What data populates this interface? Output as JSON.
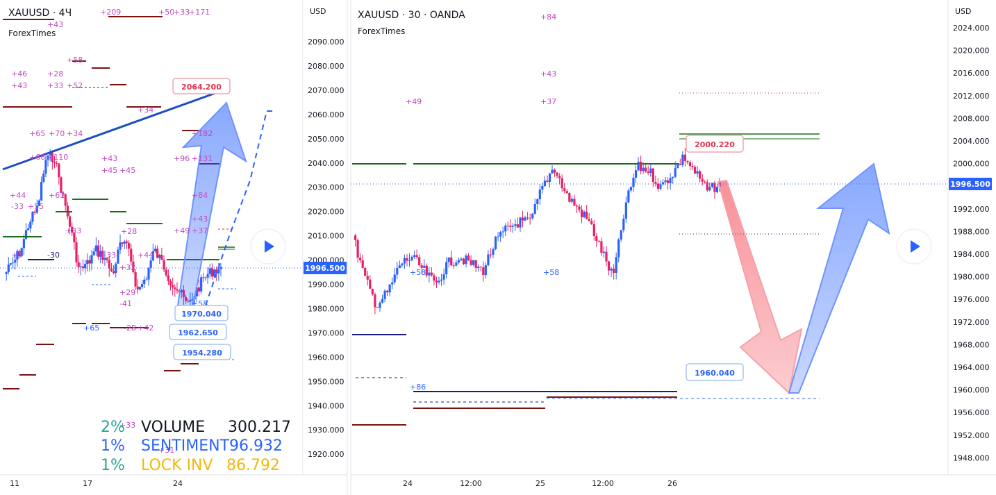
{
  "left_panel": {
    "symbol": "XAUUSD · 4Ч",
    "source": "ForexTimes",
    "currency": "USD",
    "y_ticks": [
      "2090.000",
      "2080.000",
      "2070.000",
      "2060.000",
      "2050.000",
      "2040.000",
      "2030.000",
      "2020.000",
      "2010.000",
      "2000.000",
      "1990.000",
      "1980.000",
      "1970.000",
      "1960.000",
      "1950.000",
      "1940.000",
      "1930.000",
      "1920.000"
    ],
    "x_ticks": [
      "11",
      "17",
      "24"
    ],
    "last_price": "1996.500",
    "callouts": {
      "top": "2064.200",
      "c1": "1970.040",
      "c2": "1962.650",
      "c3": "1954.280"
    },
    "stats": [
      {
        "pct": "2%",
        "label": "VOLUME",
        "value": "300.217",
        "pct_color": "#26a69a",
        "label_color": "#131722",
        "value_color": "#131722"
      },
      {
        "pct": "1%",
        "label": "SENTIMENT",
        "value": "96.932",
        "pct_color": "#2962ff",
        "label_color": "#2962ff",
        "value_color": "#2962ff"
      },
      {
        "pct": "1%",
        "label": "LOCK INV",
        "value": "86.792",
        "pct_color": "#26a69a",
        "label_color": "#f0b90b",
        "value_color": "#f0b90b"
      }
    ]
  },
  "right_panel": {
    "symbol": "XAUUSD · 30 · OANDA",
    "source": "ForexTimes",
    "currency": "USD",
    "y_ticks": [
      "2024.000",
      "2020.000",
      "2016.000",
      "2012.000",
      "2008.000",
      "2004.000",
      "2000.000",
      "1996.000",
      "1992.000",
      "1988.000",
      "1984.000",
      "1980.000",
      "1976.000",
      "1972.000",
      "1968.000",
      "1964.000",
      "1960.000",
      "1956.000",
      "1952.000",
      "1948.000"
    ],
    "x_ticks": [
      "24",
      "12:00",
      "25",
      "12:00",
      "26"
    ],
    "last_price": "1996.500",
    "callouts": {
      "top": "2000.220",
      "bottom": "1960.040"
    },
    "annotations": [
      "+84",
      "+43",
      "+37",
      "+49",
      "+58",
      "+58",
      "+86"
    ]
  },
  "colors": {
    "up": "#2962ff",
    "down": "#e91e63",
    "price_badge": "#2962ff",
    "callout_red": "#e0334d",
    "callout_blue": "#2962ff"
  },
  "chart_data": [
    {
      "type": "candlestick",
      "title": "XAUUSD · 4Ч",
      "ylabel": "USD",
      "ylim": [
        1915,
        2100
      ],
      "x_ticks": [
        "11",
        "17",
        "24"
      ],
      "last": 1996.5,
      "levels": {
        "resistance_line_end": 2064.2,
        "targets": [
          1970.04,
          1962.65,
          1954.28
        ]
      }
    },
    {
      "type": "candlestick",
      "title": "XAUUSD · 30 · OANDA",
      "ylabel": "USD",
      "ylim": [
        1946,
        2026
      ],
      "x_ticks": [
        "24",
        "12:00",
        "25",
        "12:00",
        "26"
      ],
      "last": 1996.5,
      "levels": {
        "high_callout": 2000.22,
        "low_callout": 1960.04
      }
    }
  ]
}
